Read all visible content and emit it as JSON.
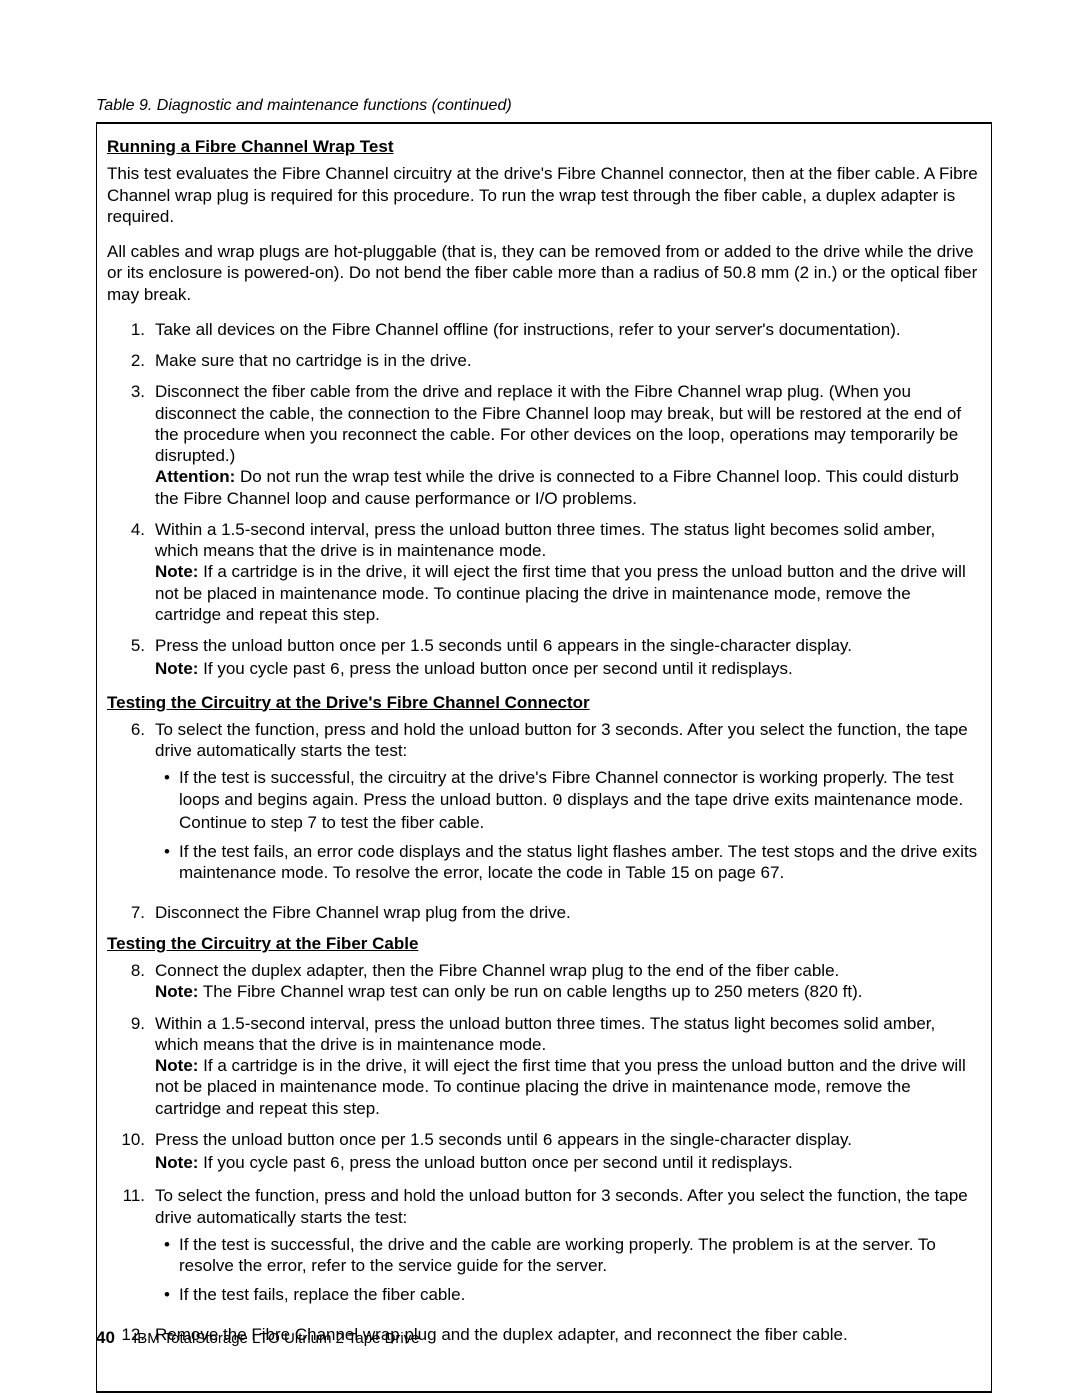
{
  "caption": "Table 9. Diagnostic and maintenance functions  (continued)",
  "section1_title": "Running a Fibre Channel Wrap Test",
  "para1": "This test evaluates the Fibre Channel circuitry at the drive's Fibre Channel connector, then at the fiber cable. A Fibre Channel wrap plug is required for this procedure. To run the wrap test through the fiber cable, a duplex adapter is required.",
  "para2": "All cables and wrap plugs are hot-pluggable (that is, they can be removed from or added to the drive while the drive or its enclosure is powered-on). Do not bend the fiber cable more than a radius of 50.8 mm (2 in.) or the optical fiber may break.",
  "steps": {
    "s1": "Take all devices on the Fibre Channel offline (for instructions, refer to your server's documentation).",
    "s2": "Make sure that no cartridge is in the drive.",
    "s3a": "Disconnect the fiber cable from the drive and replace it with the Fibre Channel wrap plug. (When you disconnect the cable, the connection to the Fibre Channel loop may break, but will be restored at the end of the procedure when you reconnect the cable. For other devices on the loop, operations may temporarily be disrupted.)",
    "s3attn_label": "Attention:",
    "s3attn": "   Do not run the wrap test while the drive is connected to a Fibre Channel loop. This could disturb the Fibre Channel loop and cause performance or I/O problems.",
    "s4a": "Within a 1.5-second interval, press the unload button three times. The status light becomes solid amber, which means that the drive is in maintenance mode.",
    "s4note_label": "Note:",
    "s4note": "  If a cartridge is in the drive, it will eject the first time that you press the unload button and the drive will not be placed in maintenance mode. To continue placing the drive in maintenance mode, remove the cartridge and repeat this step.",
    "s5a_pre": "Press the unload button once per 1.5 seconds until ",
    "s5a_code": "6",
    "s5a_post": " appears in the single-character display.",
    "s5note_label": "Note:",
    "s5note_pre": "  If you cycle past ",
    "s5note_code": "6",
    "s5note_post": ", press the unload button once per second until it redisplays."
  },
  "section2_title": "Testing the Circuitry at the Drive's Fibre Channel Connector",
  "steps2": {
    "s6a": "To select the function, press and hold the unload button for 3 seconds. After you select the function, the tape drive automatically starts the test:",
    "s6b1_pre": "If the test is successful, the circuitry at the drive's Fibre Channel connector is working properly. The test loops and begins again. Press the unload button. ",
    "s6b1_code": "0",
    "s6b1_post": " displays and the tape drive exits maintenance mode. Continue to step 7 to test the fiber cable.",
    "s6b2": "If the test fails, an error code displays and the status light flashes amber. The test stops and the drive exits maintenance mode. To resolve the error, locate the code in Table 15 on page 67.",
    "s7": "Disconnect the Fibre Channel wrap plug from the drive."
  },
  "section3_title": "Testing the Circuitry at the Fiber Cable",
  "steps3": {
    "s8a": "Connect the duplex adapter, then the Fibre Channel wrap plug to the end of the fiber cable.",
    "s8note_label": "Note:",
    "s8note": "  The Fibre Channel wrap test can only be run on cable lengths up to 250 meters (820 ft).",
    "s9a": "Within a 1.5-second interval, press the unload button three times. The status light becomes solid amber, which means that the drive is in maintenance mode.",
    "s9note_label": "Note:",
    "s9note": "  If a cartridge is in the drive, it will eject the first time that you press the unload button and the drive will not be placed in maintenance mode. To continue placing the drive in maintenance mode, remove the cartridge and repeat this step.",
    "s10a_pre": "Press the unload button once per 1.5 seconds until ",
    "s10a_code": "6",
    "s10a_post": " appears in the single-character display.",
    "s10note_label": "Note:",
    "s10note_pre": "  If you cycle past ",
    "s10note_code": "6",
    "s10note_post": ", press the unload button once per second until it redisplays.",
    "s11a": "To select the function, press and hold the unload button for 3 seconds. After you select the function, the tape drive automatically starts the test:",
    "s11b1": "If the test is successful, the drive and the cable are working properly. The problem is at the server. To resolve the error, refer to the service guide for the server.",
    "s11b2": "If the test fails, replace the fiber cable.",
    "s12": "Remove the Fibre Channel wrap plug and the duplex adapter, and reconnect the fiber cable."
  },
  "footer_pagenum": "40",
  "footer_text": "IBM TotalStorage LTO Ultrium 2 Tape Drive"
}
